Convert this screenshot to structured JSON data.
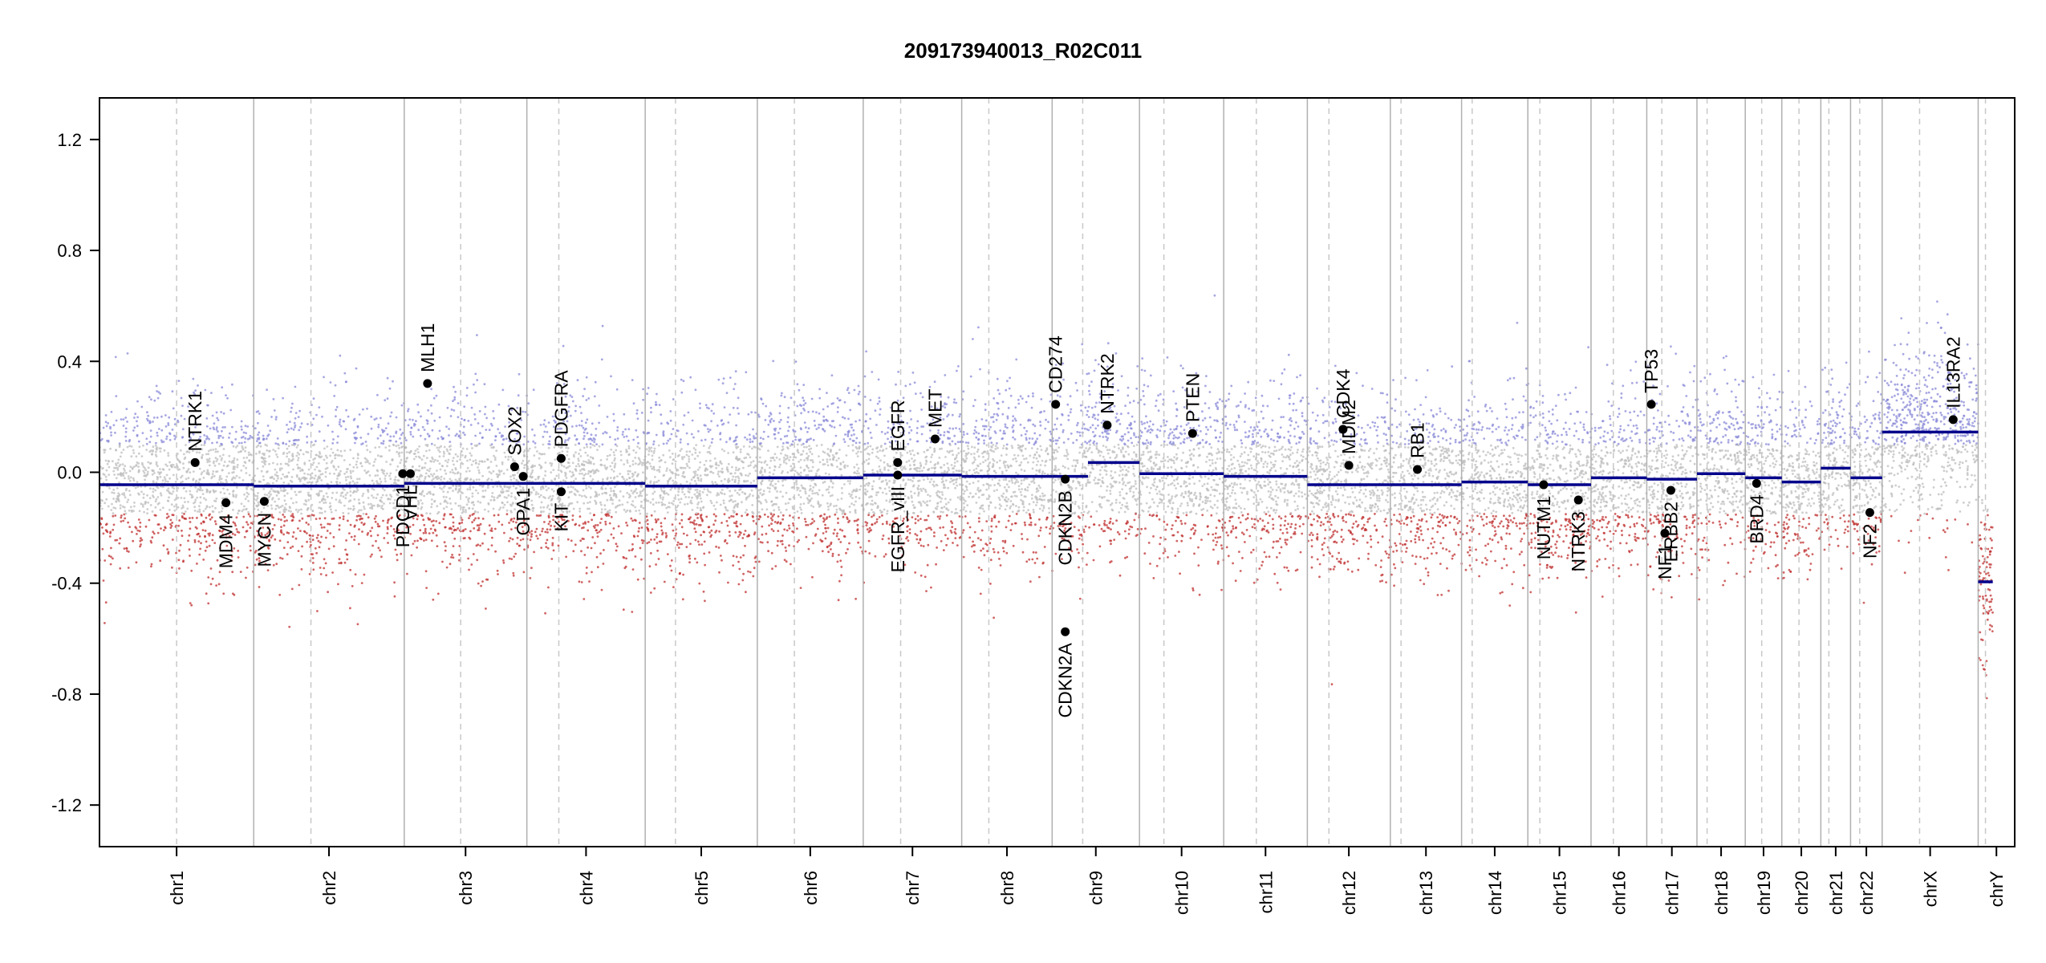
{
  "chart_data": {
    "type": "scatter",
    "title": "209173940013_R02C011",
    "xlabel": "",
    "ylabel": "",
    "ylim": [
      -1.35,
      1.35
    ],
    "y_ticks": [
      "-1.2",
      "-0.8",
      "-0.4",
      "0.0",
      "0.4",
      "0.8",
      "1.2"
    ],
    "grid": false,
    "colors": {
      "segment": "#00008B",
      "gain_points": "#8a8ad8",
      "neutral_points": "#bdbdbd",
      "loss_points": "#c03030",
      "chromosome_boundary": "#b0b0b0",
      "centromere": "#c8c8c8",
      "gene_marker": "#000000"
    },
    "chromosomes": [
      {
        "name": "chr1",
        "size": 249,
        "cen": 0.5,
        "segments": [
          {
            "start": 0.0,
            "end": 1.0,
            "value": -0.045
          }
        ]
      },
      {
        "name": "chr2",
        "size": 243,
        "cen": 0.38,
        "segments": [
          {
            "start": 0.0,
            "end": 1.0,
            "value": -0.05
          }
        ]
      },
      {
        "name": "chr3",
        "size": 198,
        "cen": 0.46,
        "segments": [
          {
            "start": 0.0,
            "end": 1.0,
            "value": -0.04
          }
        ]
      },
      {
        "name": "chr4",
        "size": 191,
        "cen": 0.27,
        "segments": [
          {
            "start": 0.0,
            "end": 1.0,
            "value": -0.04
          }
        ]
      },
      {
        "name": "chr5",
        "size": 181,
        "cen": 0.27,
        "segments": [
          {
            "start": 0.0,
            "end": 1.0,
            "value": -0.05
          }
        ]
      },
      {
        "name": "chr6",
        "size": 171,
        "cen": 0.35,
        "segments": [
          {
            "start": 0.0,
            "end": 1.0,
            "value": -0.02
          }
        ]
      },
      {
        "name": "chr7",
        "size": 159,
        "cen": 0.38,
        "segments": [
          {
            "start": 0.0,
            "end": 1.0,
            "value": -0.01
          }
        ]
      },
      {
        "name": "chr8",
        "size": 146,
        "cen": 0.3,
        "segments": [
          {
            "start": 0.0,
            "end": 1.0,
            "value": -0.015
          }
        ]
      },
      {
        "name": "chr9",
        "size": 141,
        "cen": 0.35,
        "segments": [
          {
            "start": 0.0,
            "end": 0.41,
            "value": -0.015
          },
          {
            "start": 0.41,
            "end": 1.0,
            "value": 0.035
          }
        ]
      },
      {
        "name": "chr10",
        "size": 136,
        "cen": 0.29,
        "segments": [
          {
            "start": 0.0,
            "end": 1.0,
            "value": -0.005
          }
        ]
      },
      {
        "name": "chr11",
        "size": 135,
        "cen": 0.39,
        "segments": [
          {
            "start": 0.0,
            "end": 1.0,
            "value": -0.015
          }
        ]
      },
      {
        "name": "chr12",
        "size": 134,
        "cen": 0.26,
        "segments": [
          {
            "start": 0.0,
            "end": 1.0,
            "value": -0.045
          }
        ]
      },
      {
        "name": "chr13",
        "size": 115,
        "cen": 0.15,
        "segments": [
          {
            "start": 0.0,
            "end": 1.0,
            "value": -0.045
          }
        ]
      },
      {
        "name": "chr14",
        "size": 107,
        "cen": 0.16,
        "segments": [
          {
            "start": 0.0,
            "end": 1.0,
            "value": -0.035
          }
        ]
      },
      {
        "name": "chr15",
        "size": 102,
        "cen": 0.19,
        "segments": [
          {
            "start": 0.0,
            "end": 1.0,
            "value": -0.045
          }
        ]
      },
      {
        "name": "chr16",
        "size": 90,
        "cen": 0.4,
        "segments": [
          {
            "start": 0.0,
            "end": 1.0,
            "value": -0.02
          }
        ]
      },
      {
        "name": "chr17",
        "size": 81,
        "cen": 0.3,
        "segments": [
          {
            "start": 0.0,
            "end": 1.0,
            "value": -0.025
          }
        ]
      },
      {
        "name": "chr18",
        "size": 78,
        "cen": 0.21,
        "segments": [
          {
            "start": 0.0,
            "end": 1.0,
            "value": -0.005
          }
        ]
      },
      {
        "name": "chr19",
        "size": 59,
        "cen": 0.45,
        "segments": [
          {
            "start": 0.0,
            "end": 1.0,
            "value": -0.02
          }
        ]
      },
      {
        "name": "chr20",
        "size": 63,
        "cen": 0.44,
        "segments": [
          {
            "start": 0.0,
            "end": 1.0,
            "value": -0.035
          }
        ]
      },
      {
        "name": "chr21",
        "size": 48,
        "cen": 0.27,
        "segments": [
          {
            "start": 0.0,
            "end": 1.0,
            "value": 0.015
          }
        ]
      },
      {
        "name": "chr22",
        "size": 51,
        "cen": 0.29,
        "segments": [
          {
            "start": 0.0,
            "end": 1.0,
            "value": -0.02
          }
        ]
      },
      {
        "name": "chrX",
        "size": 155,
        "cen": 0.39,
        "segments": [
          {
            "start": 0.0,
            "end": 1.0,
            "value": 0.145
          }
        ]
      },
      {
        "name": "chrY",
        "size": 59,
        "cen": 0.2,
        "segments": [
          {
            "start": 0.0,
            "end": 0.4,
            "value": -0.395
          }
        ]
      }
    ],
    "genes": [
      {
        "name": "NTRK1",
        "chr": "chr1",
        "pos": 0.62,
        "value": 0.035,
        "label": "above"
      },
      {
        "name": "MDM4",
        "chr": "chr1",
        "pos": 0.82,
        "value": -0.11,
        "label": "below"
      },
      {
        "name": "MYCN",
        "chr": "chr2",
        "pos": 0.07,
        "value": -0.105,
        "label": "below"
      },
      {
        "name": "PDCD1",
        "chr": "chr2",
        "pos": 0.99,
        "value": -0.005,
        "label": "below"
      },
      {
        "name": "VHL",
        "chr": "chr3",
        "pos": 0.05,
        "value": -0.005,
        "label": "below"
      },
      {
        "name": "MLH1",
        "chr": "chr3",
        "pos": 0.19,
        "value": 0.32,
        "label": "above"
      },
      {
        "name": "SOX2",
        "chr": "chr3",
        "pos": 0.9,
        "value": 0.02,
        "label": "above"
      },
      {
        "name": "OPA1",
        "chr": "chr3",
        "pos": 0.97,
        "value": -0.015,
        "label": "below"
      },
      {
        "name": "PDGFRA",
        "chr": "chr4",
        "pos": 0.29,
        "value": 0.05,
        "label": "above"
      },
      {
        "name": "KIT",
        "chr": "chr4",
        "pos": 0.29,
        "value": -0.07,
        "label": "below"
      },
      {
        "name": "EGFR",
        "chr": "chr7",
        "pos": 0.35,
        "value": 0.035,
        "label": "above"
      },
      {
        "name": "EGFR_vIII",
        "chr": "chr7",
        "pos": 0.35,
        "value": -0.01,
        "label": "below"
      },
      {
        "name": "MET",
        "chr": "chr7",
        "pos": 0.73,
        "value": 0.12,
        "label": "above"
      },
      {
        "name": "CD274",
        "chr": "chr9",
        "pos": 0.04,
        "value": 0.245,
        "label": "above"
      },
      {
        "name": "CDKN2B",
        "chr": "chr9",
        "pos": 0.15,
        "value": -0.025,
        "label": "below"
      },
      {
        "name": "CDKN2A",
        "chr": "chr9",
        "pos": 0.15,
        "value": -0.575,
        "label": "below"
      },
      {
        "name": "NTRK2",
        "chr": "chr9",
        "pos": 0.63,
        "value": 0.17,
        "label": "above"
      },
      {
        "name": "PTEN",
        "chr": "chr10",
        "pos": 0.63,
        "value": 0.14,
        "label": "above"
      },
      {
        "name": "CDK4",
        "chr": "chr12",
        "pos": 0.43,
        "value": 0.155,
        "label": "above"
      },
      {
        "name": "MDM2",
        "chr": "chr12",
        "pos": 0.5,
        "value": 0.025,
        "label": "above"
      },
      {
        "name": "RB1",
        "chr": "chr13",
        "pos": 0.38,
        "value": 0.01,
        "label": "above"
      },
      {
        "name": "NUTM1",
        "chr": "chr15",
        "pos": 0.25,
        "value": -0.045,
        "label": "below"
      },
      {
        "name": "NTRK3",
        "chr": "chr15",
        "pos": 0.8,
        "value": -0.1,
        "label": "below"
      },
      {
        "name": "TP53",
        "chr": "chr17",
        "pos": 0.09,
        "value": 0.245,
        "label": "above"
      },
      {
        "name": "NF1",
        "chr": "chr17",
        "pos": 0.36,
        "value": -0.22,
        "label": "below"
      },
      {
        "name": "ERBB2",
        "chr": "chr17",
        "pos": 0.48,
        "value": -0.065,
        "label": "below"
      },
      {
        "name": "BRD4",
        "chr": "chr19",
        "pos": 0.31,
        "value": -0.04,
        "label": "below"
      },
      {
        "name": "NF2",
        "chr": "chr22",
        "pos": 0.61,
        "value": -0.145,
        "label": "below"
      },
      {
        "name": "IL13RA2",
        "chr": "chrX",
        "pos": 0.74,
        "value": 0.19,
        "label": "above"
      }
    ]
  }
}
